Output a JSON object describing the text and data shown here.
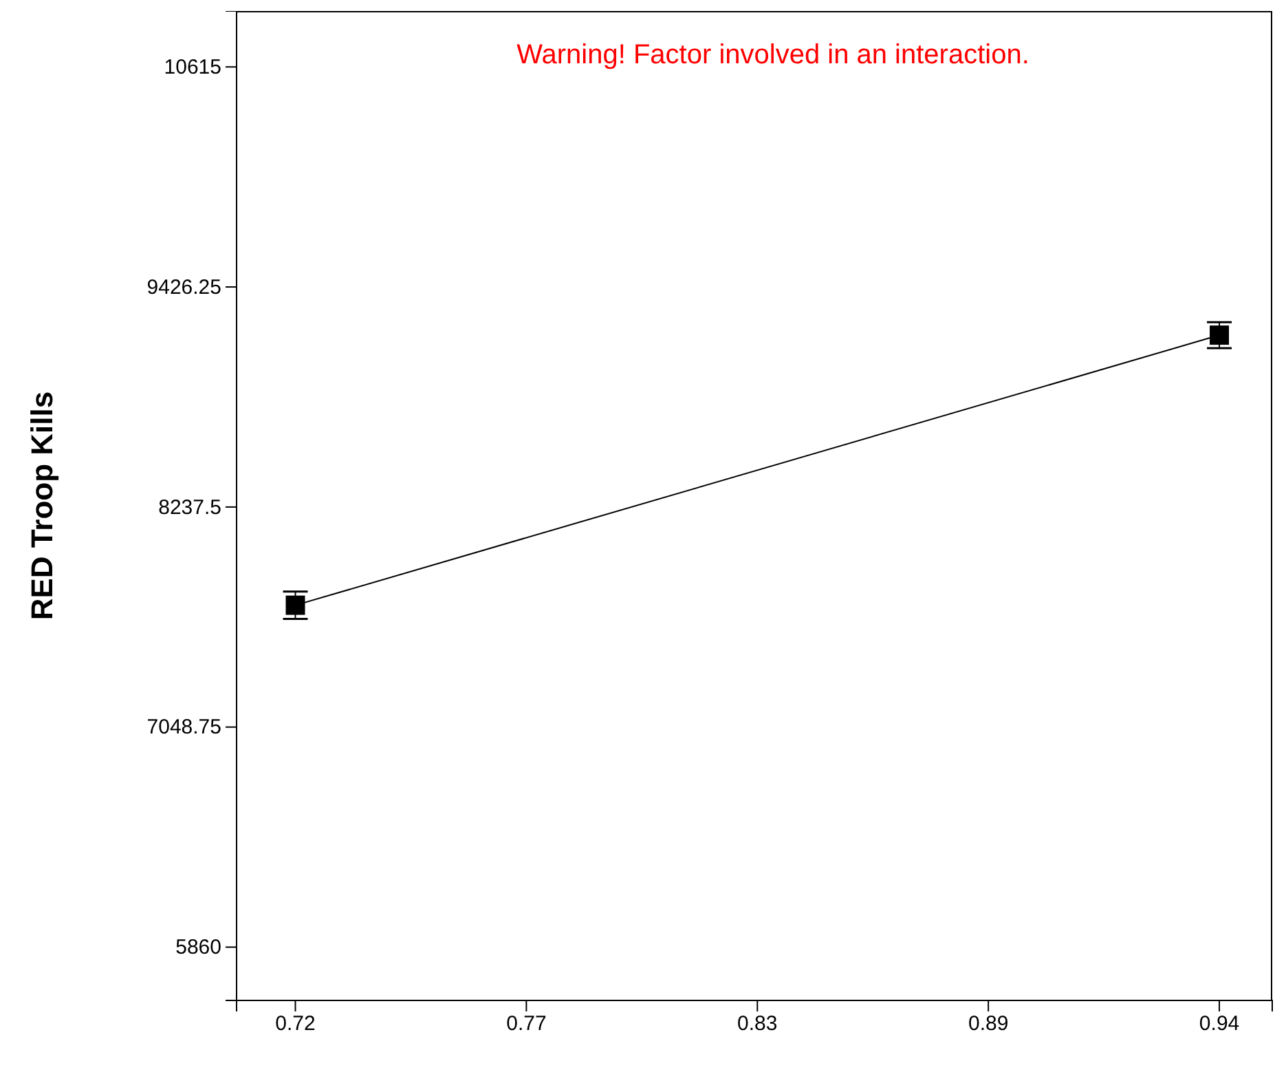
{
  "chart_data": {
    "type": "line",
    "ylabel": "RED Troop Kills",
    "annotations": [
      "Warning! Factor involved in an interaction."
    ],
    "x": [
      0.72,
      0.94
    ],
    "series": [
      {
        "color": "#000000",
        "values": [
          7707,
          9166
        ],
        "errors": [
          74,
          70
        ]
      }
    ],
    "xlim": [
      0.706,
      0.9526
    ],
    "xticks": [
      0.72,
      {
        "value": 0.775,
        "label": "0.77"
      },
      0.83,
      {
        "value": 0.885,
        "label": "0.89"
      },
      0.94
    ],
    "ylim": [
      5572,
      10917
    ],
    "yticks": [
      5860,
      7048.75,
      8237.5,
      9426.25,
      10615
    ],
    "marker": "square",
    "line_style": "solid",
    "grid": false
  }
}
